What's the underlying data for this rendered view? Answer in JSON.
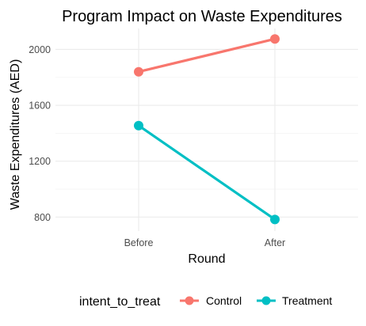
{
  "chart_data": {
    "type": "line",
    "title": "Program Impact on Waste Expenditures",
    "xlabel": "Round",
    "ylabel": "Waste Expenditures (AED)",
    "categories": [
      "Before",
      "After"
    ],
    "ylim": [
      700,
      2150
    ],
    "yticks": [
      800,
      1200,
      1600,
      2000
    ],
    "grid": true,
    "legend_title": "intent_to_treat",
    "legend_position": "bottom",
    "series": [
      {
        "name": "Control",
        "color": "#F8766D",
        "values": [
          1840,
          2075
        ]
      },
      {
        "name": "Treatment",
        "color": "#00BFC4",
        "values": [
          1455,
          783
        ]
      }
    ]
  }
}
